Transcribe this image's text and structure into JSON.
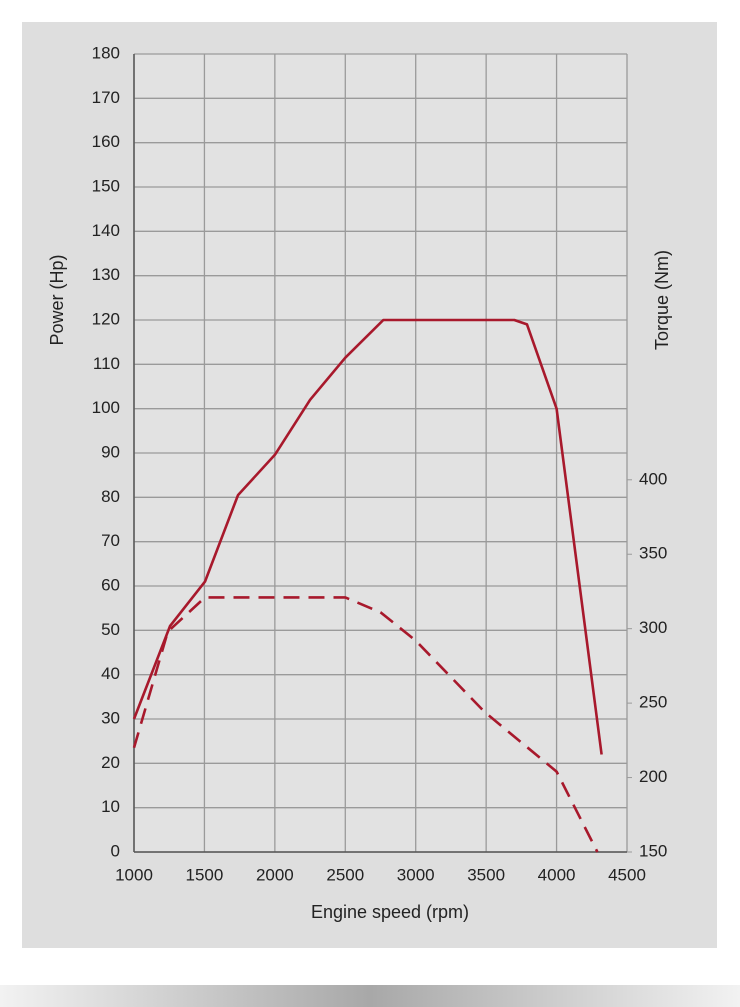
{
  "chart_data": {
    "type": "line",
    "x_label": "Engine speed (rpm)",
    "y_label": "Power (Hp)",
    "y2_label": "Torque (Nm)",
    "xlim": [
      1000,
      4500
    ],
    "xticks": [
      1000,
      1500,
      2000,
      2500,
      3000,
      3500,
      4000,
      4500
    ],
    "ylim": [
      0,
      180
    ],
    "yticks": [
      0,
      10,
      20,
      30,
      40,
      50,
      60,
      70,
      80,
      90,
      100,
      110,
      120,
      130,
      140,
      150,
      160,
      170,
      180
    ],
    "y2lim": [
      150,
      686
    ],
    "y2ticks": [
      150,
      200,
      250,
      300,
      350,
      400
    ],
    "grid": true,
    "series": [
      {
        "color": "#a8192c",
        "style": "solid",
        "axis": "y",
        "x": [
          1000,
          1256,
          1504,
          1738,
          2000,
          2250,
          2500,
          2770,
          3700,
          3790,
          4000,
          4320
        ],
        "values": [
          30,
          51,
          61,
          80.5,
          89.6,
          102,
          111.5,
          120,
          120,
          119,
          100,
          22
        ]
      },
      {
        "color": "#a8192c",
        "style": "dashed",
        "axis": "y2",
        "x": [
          1000,
          1240,
          1504,
          2500,
          2750,
          3000,
          3490,
          4000,
          4290
        ],
        "values": [
          220,
          298,
          321,
          321,
          311,
          292,
          244,
          204,
          150
        ]
      }
    ]
  }
}
